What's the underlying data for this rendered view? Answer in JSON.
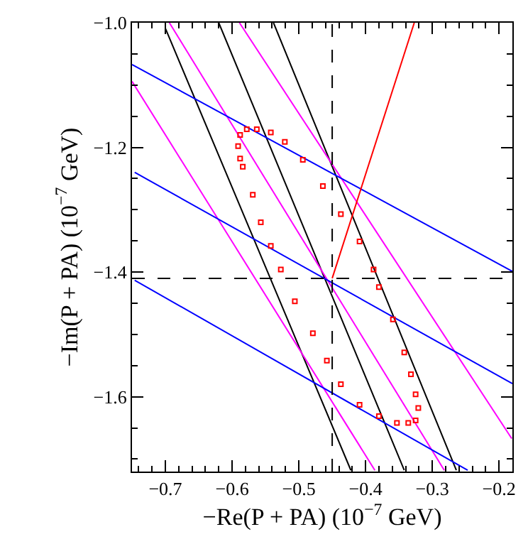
{
  "chart_data": {
    "type": "line",
    "xlabel": "−Re(P + PA) (10$^{−7}$ GeV)",
    "ylabel": "−Im(P + PA) (10$^{−7}$ GeV)",
    "xlim": [
      -0.75,
      -0.18
    ],
    "ylim": [
      -1.72,
      -1.0
    ],
    "xticks": [
      {
        "value": -0.74,
        "label": null
      },
      {
        "value": -0.72,
        "label": null
      },
      -0.7,
      {
        "value": -0.68,
        "label": null
      },
      {
        "value": -0.66,
        "label": null
      },
      {
        "value": -0.64,
        "label": null
      },
      {
        "value": -0.62,
        "label": null
      },
      -0.6,
      {
        "value": -0.58,
        "label": null
      },
      {
        "value": -0.56,
        "label": null
      },
      {
        "value": -0.54,
        "label": null
      },
      {
        "value": -0.52,
        "label": null
      },
      -0.5,
      {
        "value": -0.48,
        "label": null
      },
      {
        "value": -0.46,
        "label": null
      },
      {
        "value": -0.44,
        "label": null
      },
      {
        "value": -0.42,
        "label": null
      },
      -0.4,
      {
        "value": -0.38,
        "label": null
      },
      {
        "value": -0.36,
        "label": null
      },
      {
        "value": -0.34,
        "label": null
      },
      {
        "value": -0.32,
        "label": null
      },
      -0.3,
      {
        "value": -0.28,
        "label": null
      },
      {
        "value": -0.26,
        "label": null
      },
      {
        "value": -0.24,
        "label": null
      },
      {
        "value": -0.22,
        "label": null
      },
      -0.2
    ],
    "yticks": [
      {
        "value": -1.7,
        "label": null
      },
      {
        "value": -1.65,
        "label": null
      },
      -1.6,
      {
        "value": -1.55,
        "label": null
      },
      {
        "value": -1.5,
        "label": null
      },
      {
        "value": -1.45,
        "label": null
      },
      -1.4,
      {
        "value": -1.35,
        "label": null
      },
      {
        "value": -1.3,
        "label": null
      },
      {
        "value": -1.25,
        "label": null
      },
      -1.2,
      {
        "value": -1.15,
        "label": null
      },
      {
        "value": -1.1,
        "label": null
      },
      {
        "value": -1.05,
        "label": null
      },
      {
        "value": -1.0,
        "label": "−1.0"
      }
    ],
    "grid": false,
    "ref_lines": [
      {
        "axis": "x",
        "value": -0.45,
        "color": "#000000",
        "line_style": "dashed"
      },
      {
        "axis": "y",
        "value": -1.41,
        "color": "#000000",
        "line_style": "dashed"
      }
    ],
    "series": [
      {
        "color": "#000000",
        "x": [
          -0.7,
          -0.422
        ],
        "values": [
          -1.009,
          -1.718
        ]
      },
      {
        "color": "#000000",
        "x": [
          -0.62,
          -0.342
        ],
        "values": [
          -1.0,
          -1.718
        ]
      },
      {
        "color": "#000000",
        "x": [
          -0.538,
          -0.264
        ],
        "values": [
          -1.0,
          -1.718
        ]
      },
      {
        "color": "#ff00ff",
        "x": [
          -0.75,
          -0.386
        ],
        "values": [
          -1.094,
          -1.718
        ]
      },
      {
        "color": "#ff00ff",
        "x": [
          -0.694,
          -0.282
        ],
        "values": [
          -1.0,
          -1.718
        ]
      },
      {
        "color": "#ff00ff",
        "x": [
          -0.589,
          -0.181
        ],
        "values": [
          -1.0,
          -1.667
        ]
      },
      {
        "color": "#0000ff",
        "x": [
          -0.75,
          -0.18
        ],
        "values": [
          -1.067,
          -1.399
        ]
      },
      {
        "color": "#0000ff",
        "x": [
          -0.746,
          -0.18
        ],
        "values": [
          -1.24,
          -1.579
        ]
      },
      {
        "color": "#0000ff",
        "x": [
          -0.746,
          -0.247
        ],
        "values": [
          -1.413,
          -1.718
        ]
      },
      {
        "color": "#ff0000",
        "x": [
          -0.45,
          -0.327
        ],
        "values": [
          -1.41,
          -1.0
        ]
      },
      {
        "type": "scatter",
        "marker": "square",
        "color": "#ff0000",
        "x": [
          -0.591,
          -0.588,
          -0.578,
          -0.563,
          -0.542,
          -0.521,
          -0.494,
          -0.464,
          -0.437,
          -0.409,
          -0.388,
          -0.38,
          -0.359,
          -0.342,
          -0.332,
          -0.325,
          -0.321,
          -0.325,
          -0.336,
          -0.353,
          -0.38,
          -0.409,
          -0.437,
          -0.458,
          -0.479,
          -0.506,
          -0.527,
          -0.542,
          -0.557,
          -0.569,
          -0.584,
          -0.588
        ],
        "values": [
          -1.198,
          -1.18,
          -1.171,
          -1.171,
          -1.176,
          -1.191,
          -1.22,
          -1.262,
          -1.307,
          -1.351,
          -1.396,
          -1.424,
          -1.476,
          -1.529,
          -1.564,
          -1.596,
          -1.618,
          -1.638,
          -1.642,
          -1.642,
          -1.631,
          -1.613,
          -1.58,
          -1.542,
          -1.498,
          -1.447,
          -1.396,
          -1.358,
          -1.32,
          -1.276,
          -1.231,
          -1.218
        ]
      }
    ]
  }
}
